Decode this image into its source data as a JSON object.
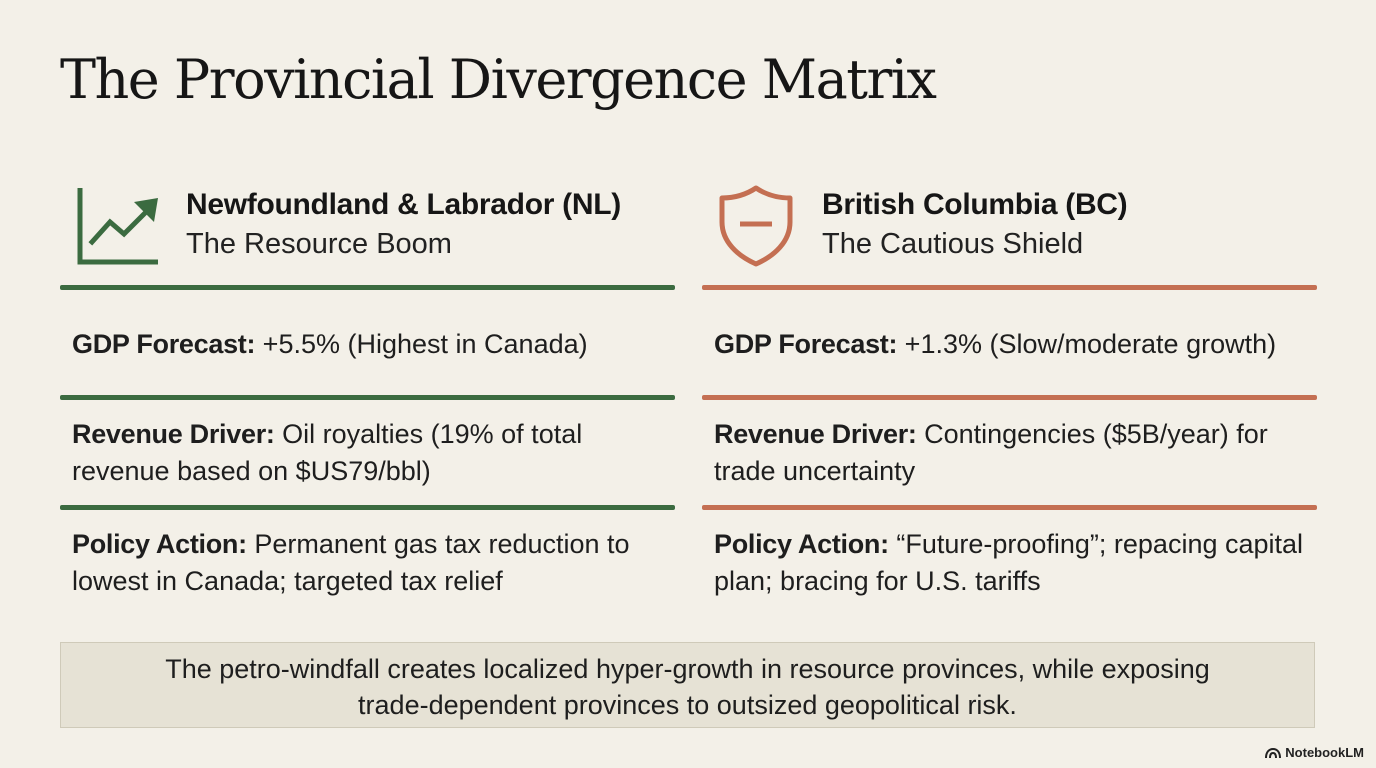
{
  "title": "The Provincial Divergence Matrix",
  "colors": {
    "background": "#f3f0e8",
    "nl_accent": "#3b6b40",
    "bc_accent": "#c46f52",
    "footer_bg": "#e6e2d5"
  },
  "columns": {
    "nl": {
      "icon": "trending-up-chart-icon",
      "title": "Newfoundland & Labrador (NL)",
      "subtitle": "The Resource Boom",
      "gdp_label": "GDP Forecast:",
      "gdp_value": " +5.5% (Highest in Canada)",
      "revenue_label": "Revenue Driver:",
      "revenue_value": " Oil royalties (19% of total revenue based on $US79/bbl)",
      "policy_label": "Policy Action:",
      "policy_value": " Permanent gas tax reduction to lowest in Canada; targeted tax relief"
    },
    "bc": {
      "icon": "shield-minus-icon",
      "title": "British Columbia (BC)",
      "subtitle": "The Cautious Shield",
      "gdp_label": "GDP Forecast:",
      "gdp_value": " +1.3% (Slow/moderate growth)",
      "revenue_label": "Revenue Driver:",
      "revenue_value": " Contingencies ($5B/year) for trade uncertainty",
      "policy_label": "Policy Action:",
      "policy_value": " “Future-proofing”; repacing capital plan; bracing for U.S. tariffs"
    }
  },
  "footer": {
    "line1": "The petro-windfall creates localized hyper-growth in resource provinces, while exposing",
    "line2": "trade-dependent provinces to outsized geopolitical risk."
  },
  "brand": {
    "icon": "notebooklm-logo-icon",
    "label": "NotebookLM"
  }
}
